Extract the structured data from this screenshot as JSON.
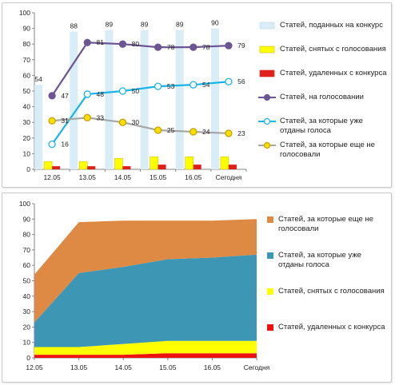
{
  "chart_data": [
    {
      "type": "bar+line",
      "categories": [
        "12.05",
        "13.05",
        "14.05",
        "15.05",
        "16.05",
        "Сегодня"
      ],
      "ylim": [
        0,
        100
      ],
      "yticks": [
        0,
        10,
        20,
        30,
        40,
        50,
        60,
        70,
        80,
        90,
        100
      ],
      "grid": false,
      "legend_position": "right",
      "series": [
        {
          "name": "Статей, поданных на конкурс",
          "kind": "bar",
          "color": "#d9edf7",
          "values": [
            54,
            88,
            89,
            89,
            89,
            90
          ],
          "labels": [
            "54",
            "88",
            "89",
            "89",
            "89",
            "90"
          ]
        },
        {
          "name": "Статей, снятых с голосования",
          "kind": "bar",
          "color": "#ffff00",
          "values": [
            5,
            5,
            7,
            8,
            8,
            8
          ]
        },
        {
          "name": "Статей, удаленных с конкурса",
          "kind": "bar",
          "color": "#e0201b",
          "values": [
            2,
            2,
            2,
            3,
            3,
            3
          ]
        },
        {
          "name": "Статей, на голосовании",
          "kind": "line",
          "color": "#6b5592",
          "values": [
            47,
            81,
            80,
            78,
            78,
            79
          ],
          "labels": [
            "47",
            "81",
            "80",
            "78",
            "78",
            "79"
          ]
        },
        {
          "name": "Статей, за которые уже отданы голоса",
          "kind": "line",
          "color": "#18b4e6",
          "values": [
            16,
            48,
            50,
            53,
            54,
            56
          ],
          "labels": [
            "16",
            "48",
            "50",
            "53",
            "54",
            "56"
          ]
        },
        {
          "name": "Статей, за которые еще не голосовали",
          "kind": "line",
          "color": "#a6a6a6",
          "marker_color": "#ffe000",
          "values": [
            31,
            33,
            30,
            25,
            24,
            23
          ],
          "labels": [
            "31",
            "33",
            "30",
            "25",
            "24",
            "23"
          ]
        }
      ]
    },
    {
      "type": "area",
      "stacked": true,
      "categories": [
        "12.05",
        "13.05",
        "14.05",
        "15.05",
        "16.05",
        "Сегодня"
      ],
      "ylim": [
        0,
        100
      ],
      "yticks": [
        0,
        10,
        20,
        30,
        40,
        50,
        60,
        70,
        80,
        90,
        100
      ],
      "grid": false,
      "legend_position": "right",
      "series": [
        {
          "name": "Статей, удаленных с конкурса",
          "color": "#ee1111",
          "values": [
            2,
            2,
            2,
            3,
            3,
            3
          ]
        },
        {
          "name": "Статей, снятых с голосования",
          "color": "#ffff00",
          "values": [
            5,
            5,
            7,
            8,
            8,
            8
          ]
        },
        {
          "name": "Статей, за которые уже отданы голоса",
          "color": "#3d97b4",
          "values": [
            16,
            48,
            50,
            53,
            54,
            56
          ]
        },
        {
          "name": "Статей, за которые еще не голосовали",
          "color": "#de8a44",
          "values": [
            31,
            33,
            30,
            25,
            24,
            23
          ]
        }
      ],
      "legend_order": [
        3,
        2,
        1,
        0
      ]
    }
  ]
}
